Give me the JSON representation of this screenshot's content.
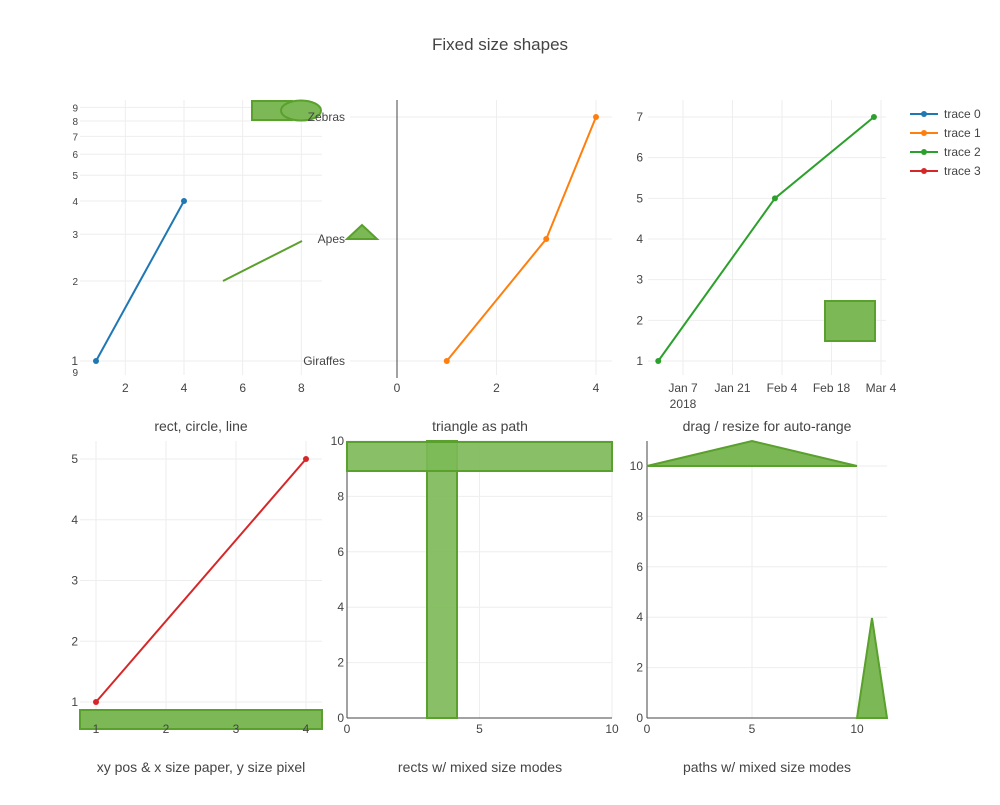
{
  "title": "Fixed size shapes",
  "colors": {
    "trace0": "#1f77b4",
    "trace1": "#ff7f0e",
    "trace2": "#2ca02c",
    "trace3": "#d62728",
    "shape_fill": "#7cb956",
    "shape_line": "#5aa02c",
    "grid": "#eeeeee",
    "text": "#444444"
  },
  "legend": {
    "placement": "top-right",
    "items": [
      "trace 0",
      "trace 1",
      "trace 2",
      "trace 3"
    ]
  },
  "chart_data": [
    {
      "type": "line",
      "subplot_title": "rect, circle, line",
      "y_scale": "log",
      "x_ticks": [
        "2",
        "4",
        "6",
        "8"
      ],
      "y_tick_labels": [
        "1",
        "2",
        "3",
        "4",
        "5",
        "6",
        "7",
        "8",
        "9",
        "9"
      ],
      "series": [
        {
          "name": "trace 0",
          "x": [
            1,
            4
          ],
          "y": [
            1,
            4
          ]
        }
      ],
      "shapes": [
        "rect",
        "circle",
        "line"
      ]
    },
    {
      "type": "line",
      "subplot_title": "triangle as path",
      "x_ticks": [
        "0",
        "2",
        "4"
      ],
      "y_categories": [
        "Giraffes",
        "Apes",
        "Zebras"
      ],
      "series": [
        {
          "name": "trace 1",
          "x": [
            1,
            3,
            4
          ],
          "y": [
            "Giraffes",
            "Apes",
            "Zebras"
          ]
        }
      ],
      "shapes": [
        "triangle"
      ]
    },
    {
      "type": "line",
      "subplot_title": "drag / resize for auto-range",
      "x_ticks": [
        "Jan 7",
        "Jan 21",
        "Feb 4",
        "Feb 18",
        "Mar 4"
      ],
      "x_tick_sublabel": "2018",
      "y_ticks": [
        "1",
        "2",
        "3",
        "4",
        "5",
        "6",
        "7"
      ],
      "series": [
        {
          "name": "trace 2",
          "x": [
            "2017-12-31",
            "2018-02-02",
            "2018-03-02"
          ],
          "y": [
            1,
            5,
            7
          ]
        }
      ],
      "shapes": [
        "rect"
      ]
    },
    {
      "type": "line",
      "subplot_title": "xy pos & x size paper, y size pixel",
      "x_ticks": [
        "1",
        "2",
        "3",
        "4"
      ],
      "y_ticks": [
        "1",
        "2",
        "3",
        "4",
        "5"
      ],
      "series": [
        {
          "name": "trace 3",
          "x": [
            1,
            4
          ],
          "y": [
            1,
            5
          ]
        }
      ],
      "shapes": [
        "rect"
      ]
    },
    {
      "type": "shapes",
      "subplot_title": "rects w/ mixed size modes",
      "x_ticks": [
        "0",
        "5",
        "10"
      ],
      "y_ticks": [
        "0",
        "2",
        "4",
        "6",
        "8",
        "10"
      ],
      "shapes": [
        "rect",
        "rect"
      ]
    },
    {
      "type": "shapes",
      "subplot_title": "paths w/ mixed size modes",
      "x_ticks": [
        "0",
        "5",
        "10"
      ],
      "y_ticks": [
        "0",
        "2",
        "4",
        "6",
        "8",
        "10"
      ],
      "shapes": [
        "path",
        "path"
      ]
    }
  ]
}
